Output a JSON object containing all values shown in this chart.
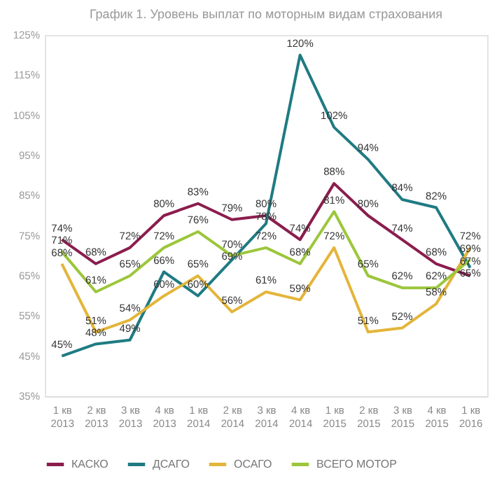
{
  "chart_data": {
    "type": "line",
    "title": "График 1. Уровень выплат по моторным видам страхования",
    "categories": [
      "1 кв 2013",
      "2 кв 2013",
      "3 кв 2013",
      "4 кв 2013",
      "1 кв 2014",
      "2 кв 2014",
      "3 кв 2014",
      "4 кв 2014",
      "1 кв 2015",
      "2 кв 2015",
      "3 кв 2015",
      "4 кв 2015",
      "1 кв 2016"
    ],
    "series": [
      {
        "name": "КАСКО",
        "color": "#8b1d4e",
        "values": [
          74,
          68,
          72,
          80,
          83,
          79,
          80,
          74,
          88,
          80,
          74,
          68,
          65
        ],
        "value_labels": [
          "74%",
          "68%",
          "72%",
          "80%",
          "83%",
          "79%",
          "80%",
          "74%",
          "88%",
          "80%",
          "74%",
          "68%",
          "65%"
        ]
      },
      {
        "name": "ДСАГО",
        "color": "#1f7b82",
        "values": [
          45,
          48,
          49,
          66,
          60,
          69,
          78,
          120,
          102,
          94,
          84,
          82,
          67
        ],
        "value_labels": [
          "45%",
          "48%",
          "49%",
          "66%",
          "60%",
          "69%",
          "78%",
          "120%",
          "102%",
          "94%",
          "84%",
          "82%",
          "67%"
        ]
      },
      {
        "name": "ОСАГО",
        "color": "#e3b53a",
        "values": [
          68,
          51,
          54,
          60,
          65,
          56,
          61,
          59,
          72,
          51,
          52,
          58,
          72
        ],
        "value_labels": [
          "68%",
          "51%",
          "54%",
          "60%",
          "65%",
          "56%",
          "61%",
          "59%",
          "72%",
          "51%",
          "52%",
          "58%",
          "72%"
        ]
      },
      {
        "name": "ВСЕГО МОТОР",
        "color": "#9cc63b",
        "values": [
          71,
          61,
          65,
          72,
          76,
          70,
          72,
          68,
          81,
          65,
          62,
          62,
          69
        ],
        "value_labels": [
          "71%",
          "61%",
          "65%",
          "72%",
          "76%",
          "70%",
          "72%",
          "68%",
          "81%",
          "65%",
          "62%",
          "62%",
          "69%"
        ]
      }
    ],
    "ylim": [
      35,
      125
    ],
    "yticks": [
      {
        "value": 35,
        "label": "35%"
      },
      {
        "value": 45,
        "label": "45%"
      },
      {
        "value": 55,
        "label": "55%"
      },
      {
        "value": 65,
        "label": "65%"
      },
      {
        "value": 75,
        "label": "75%"
      },
      {
        "value": 85,
        "label": "85%"
      },
      {
        "value": 95,
        "label": "95%"
      },
      {
        "value": 105,
        "label": "105%"
      },
      {
        "value": 115,
        "label": "115%"
      },
      {
        "value": 125,
        "label": "125%"
      }
    ],
    "grid": false,
    "legend": "bottom",
    "marker": "none",
    "line_style": "solid"
  }
}
